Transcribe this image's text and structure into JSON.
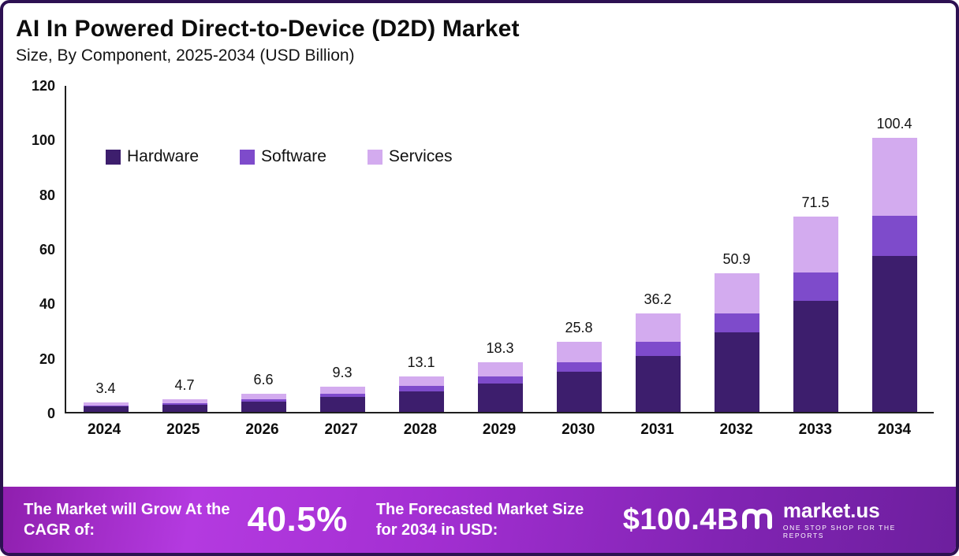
{
  "page": {
    "title": "AI In Powered Direct-to-Device (D2D) Market",
    "subtitle": "Size, By Component, 2025-2034 (USD Billion)"
  },
  "chart_data": {
    "type": "bar",
    "stacked": true,
    "title": "AI In Powered Direct-to-Device (D2D) Market Size, By Component, 2025-2034 (USD Billion)",
    "categories": [
      "2024",
      "2025",
      "2026",
      "2027",
      "2028",
      "2029",
      "2030",
      "2031",
      "2032",
      "2033",
      "2034"
    ],
    "series": [
      {
        "name": "Hardware",
        "color": "#3d1e6d",
        "values": [
          2.0,
          2.7,
          3.8,
          5.4,
          7.6,
          10.5,
          14.6,
          20.6,
          29.0,
          40.8,
          57.2
        ]
      },
      {
        "name": "Software",
        "color": "#7e4bcb",
        "values": [
          0.4,
          0.6,
          0.9,
          1.2,
          1.8,
          2.6,
          3.6,
          5.0,
          7.1,
          10.2,
          14.6
        ]
      },
      {
        "name": "Services",
        "color": "#d3abef",
        "values": [
          1.0,
          1.4,
          1.9,
          2.7,
          3.7,
          5.2,
          7.6,
          10.6,
          14.8,
          20.5,
          28.6
        ]
      }
    ],
    "totals": [
      3.4,
      4.7,
      6.6,
      9.3,
      13.1,
      18.3,
      25.8,
      36.2,
      50.9,
      71.5,
      100.4
    ],
    "xlabel": "",
    "ylabel": "",
    "ylim": [
      0,
      120
    ],
    "yticks": [
      0,
      20,
      40,
      60,
      80,
      100,
      120
    ],
    "grid": false,
    "legend_position": "top-left-inside"
  },
  "footer": {
    "cagr_label": "The Market will Grow At the CAGR of:",
    "cagr_value": "40.5%",
    "forecast_label": "The Forecasted Market Size for 2034 in USD:",
    "forecast_value": "$100.4B",
    "brand": "market.us",
    "brand_tagline": "ONE STOP SHOP FOR THE REPORTS"
  }
}
